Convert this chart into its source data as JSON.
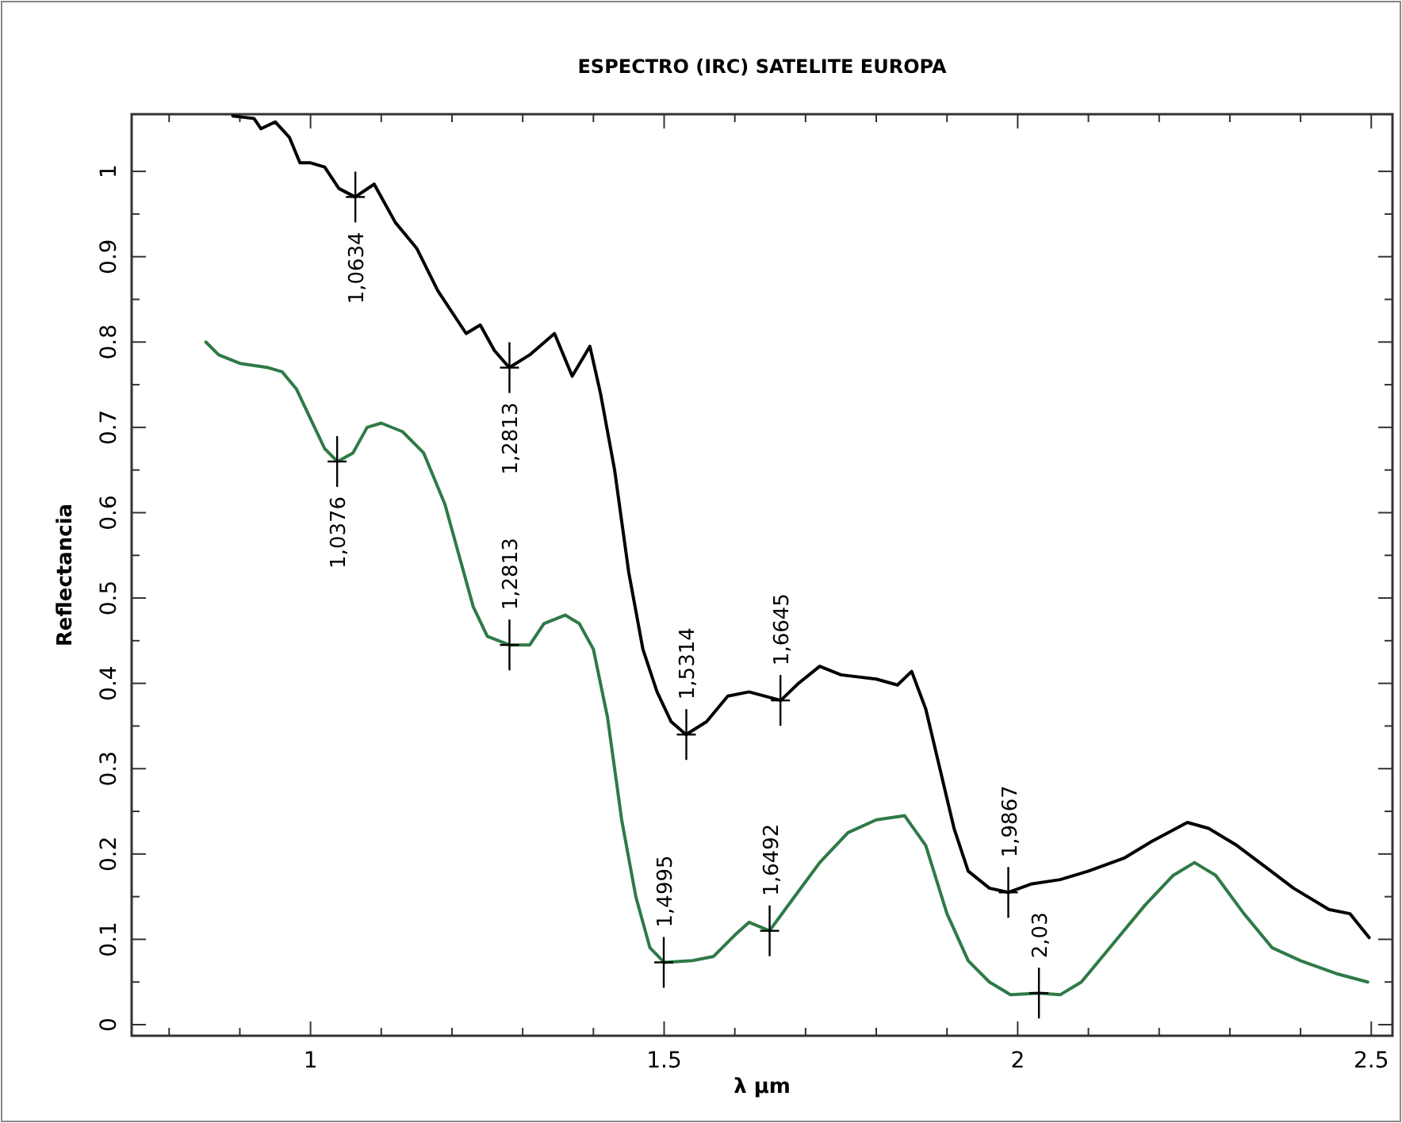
{
  "chart_data": {
    "type": "line",
    "title": "ESPECTRO (IRC) SATELITE EUROPA",
    "xlabel": "λ μm",
    "ylabel": "Reflectancia",
    "xlim": [
      0.747,
      2.53
    ],
    "ylim": [
      -0.013,
      1.067
    ],
    "xticks": [
      {
        "value": 0.8,
        "label": null
      },
      {
        "value": 0.9,
        "label": null
      },
      {
        "value": 1,
        "label": "1"
      },
      {
        "value": 1.1,
        "label": null
      },
      {
        "value": 1.2,
        "label": null
      },
      {
        "value": 1.3,
        "label": null
      },
      {
        "value": 1.4,
        "label": null
      },
      {
        "value": 1.5,
        "label": "1.5"
      },
      {
        "value": 1.6,
        "label": null
      },
      {
        "value": 1.7,
        "label": null
      },
      {
        "value": 1.8,
        "label": null
      },
      {
        "value": 1.9,
        "label": null
      },
      {
        "value": 2,
        "label": "2"
      },
      {
        "value": 2.1,
        "label": null
      },
      {
        "value": 2.2,
        "label": null
      },
      {
        "value": 2.3,
        "label": null
      },
      {
        "value": 2.4,
        "label": null
      },
      {
        "value": 2.5,
        "label": "2.5"
      }
    ],
    "yticks": [
      0,
      {
        "value": 0.05,
        "label": null
      },
      0.1,
      {
        "value": 0.15,
        "label": null
      },
      0.2,
      {
        "value": 0.25,
        "label": null
      },
      0.3,
      {
        "value": 0.35,
        "label": null
      },
      0.4,
      {
        "value": 0.45,
        "label": null
      },
      0.5,
      {
        "value": 0.55,
        "label": null
      },
      0.6,
      {
        "value": 0.65,
        "label": null
      },
      0.7,
      {
        "value": 0.75,
        "label": null
      },
      0.8,
      {
        "value": 0.85,
        "label": null
      },
      0.9,
      {
        "value": 0.95,
        "label": null
      },
      1
    ],
    "grid": false,
    "marker": "none",
    "line_style": "solid",
    "series": [
      {
        "color": "#000000",
        "x": [
          0.89,
          0.92,
          0.93,
          0.95,
          0.97,
          0.985,
          1.0,
          1.02,
          1.04,
          1.063,
          1.09,
          1.12,
          1.15,
          1.18,
          1.22,
          1.24,
          1.26,
          1.281,
          1.31,
          1.345,
          1.37,
          1.395,
          1.41,
          1.43,
          1.45,
          1.47,
          1.49,
          1.51,
          1.531,
          1.56,
          1.59,
          1.62,
          1.665,
          1.69,
          1.72,
          1.75,
          1.8,
          1.83,
          1.85,
          1.87,
          1.89,
          1.91,
          1.93,
          1.96,
          1.987,
          2.02,
          2.06,
          2.1,
          2.15,
          2.19,
          2.24,
          2.27,
          2.31,
          2.35,
          2.39,
          2.44,
          2.47,
          2.497
        ],
        "values": [
          1.065,
          1.062,
          1.05,
          1.058,
          1.04,
          1.01,
          1.01,
          1.005,
          0.98,
          0.97,
          0.985,
          0.94,
          0.91,
          0.86,
          0.81,
          0.82,
          0.79,
          0.77,
          0.785,
          0.81,
          0.76,
          0.795,
          0.74,
          0.65,
          0.53,
          0.44,
          0.39,
          0.355,
          0.34,
          0.355,
          0.385,
          0.39,
          0.38,
          0.4,
          0.42,
          0.41,
          0.405,
          0.398,
          0.414,
          0.37,
          0.3,
          0.23,
          0.18,
          0.16,
          0.155,
          0.165,
          0.17,
          0.18,
          0.195,
          0.215,
          0.237,
          0.23,
          0.21,
          0.185,
          0.16,
          0.135,
          0.13,
          0.102
        ]
      },
      {
        "color": "#2e7a46",
        "x": [
          0.852,
          0.87,
          0.9,
          0.94,
          0.96,
          0.98,
          1.0,
          1.02,
          1.038,
          1.06,
          1.08,
          1.1,
          1.13,
          1.16,
          1.19,
          1.21,
          1.23,
          1.25,
          1.281,
          1.31,
          1.33,
          1.36,
          1.38,
          1.4,
          1.42,
          1.44,
          1.46,
          1.48,
          1.5,
          1.54,
          1.57,
          1.6,
          1.62,
          1.649,
          1.68,
          1.72,
          1.76,
          1.8,
          1.84,
          1.87,
          1.9,
          1.93,
          1.96,
          1.99,
          2.03,
          2.06,
          2.09,
          2.13,
          2.18,
          2.22,
          2.25,
          2.28,
          2.32,
          2.36,
          2.4,
          2.45,
          2.495
        ],
        "values": [
          0.8,
          0.785,
          0.775,
          0.77,
          0.765,
          0.745,
          0.71,
          0.675,
          0.66,
          0.67,
          0.7,
          0.705,
          0.695,
          0.67,
          0.61,
          0.55,
          0.49,
          0.455,
          0.445,
          0.445,
          0.47,
          0.48,
          0.47,
          0.44,
          0.36,
          0.24,
          0.15,
          0.09,
          0.073,
          0.075,
          0.08,
          0.105,
          0.12,
          0.11,
          0.145,
          0.19,
          0.225,
          0.24,
          0.245,
          0.21,
          0.13,
          0.075,
          0.05,
          0.035,
          0.037,
          0.035,
          0.05,
          0.09,
          0.14,
          0.175,
          0.19,
          0.175,
          0.13,
          0.09,
          0.075,
          0.06,
          0.05
        ]
      }
    ],
    "annotations": [
      {
        "text": "1,0634",
        "x": 1.0634,
        "y": 0.97
      },
      {
        "text": "1,2813",
        "x": 1.2813,
        "y": 0.77
      },
      {
        "text": "1,5314",
        "x": 1.5314,
        "y": 0.34
      },
      {
        "text": "1,6645",
        "x": 1.6645,
        "y": 0.38
      },
      {
        "text": "1,9867",
        "x": 1.9867,
        "y": 0.155
      },
      {
        "text": "1,0376",
        "x": 1.0376,
        "y": 0.66
      },
      {
        "text": "1,2813",
        "x": 1.2813,
        "y": 0.445
      },
      {
        "text": "1,4995",
        "x": 1.4995,
        "y": 0.073
      },
      {
        "text": "1,6492",
        "x": 1.6492,
        "y": 0.11
      },
      {
        "text": "2,03",
        "x": 2.03,
        "y": 0.037
      }
    ]
  }
}
